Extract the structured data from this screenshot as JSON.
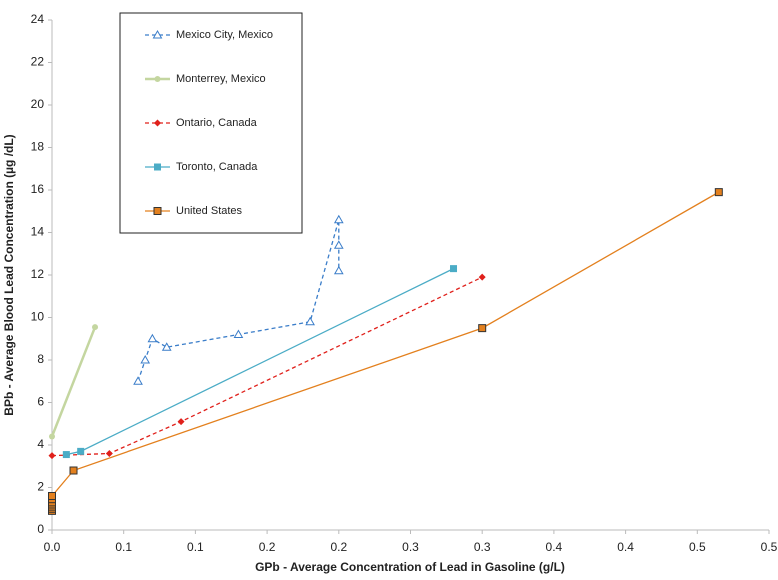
{
  "chart_data": {
    "type": "line",
    "xlabel": "GPb - Average Concentration of Lead in Gasoline (g/L)",
    "ylabel": "BPb - Average Blood Lead Concentration (µg /dL)",
    "xlim": [
      0,
      0.5
    ],
    "ylim": [
      0,
      24
    ],
    "xticks": [
      {
        "value": 0,
        "label": "0.0"
      },
      {
        "value": 0.05,
        "label": "0.1"
      },
      {
        "value": 0.1,
        "label": "0.1"
      },
      {
        "value": 0.15,
        "label": "0.2"
      },
      {
        "value": 0.2,
        "label": "0.2"
      },
      {
        "value": 0.25,
        "label": "0.3"
      },
      {
        "value": 0.3,
        "label": "0.3"
      },
      {
        "value": 0.35,
        "label": "0.4"
      },
      {
        "value": 0.4,
        "label": "0.4"
      },
      {
        "value": 0.45,
        "label": "0.5"
      },
      {
        "value": 0.5,
        "label": "0.5"
      }
    ],
    "yticks": [
      0,
      2,
      4,
      6,
      8,
      10,
      12,
      14,
      16,
      18,
      20,
      22,
      24
    ],
    "grid": false,
    "legend": "upper left",
    "series": [
      {
        "name": "Mexico City, Mexico",
        "color": "#3a7dc9",
        "dash": true,
        "marker": "triangle",
        "x": [
          0.06,
          0.065,
          0.07,
          0.08,
          0.13,
          0.18,
          0.2,
          0.2,
          0.2
        ],
        "values": [
          7.0,
          8.0,
          9.0,
          8.6,
          9.2,
          9.8,
          14.6,
          13.4,
          12.2
        ]
      },
      {
        "name": "Monterrey, Mexico",
        "color": "#c4d6a0",
        "dash": false,
        "marker": "circle",
        "x": [
          0,
          0.03
        ],
        "values": [
          4.4,
          9.55
        ]
      },
      {
        "name": "Ontario, Canada",
        "color": "#e0201b",
        "dash": true,
        "marker": "diamond",
        "x": [
          0,
          0.04,
          0.09,
          0.3
        ],
        "values": [
          3.5,
          3.6,
          5.1,
          11.9
        ]
      },
      {
        "name": "Toronto, Canada",
        "color": "#4bacc6",
        "dash": false,
        "marker": "square",
        "x": [
          0.01,
          0.02,
          0.28
        ],
        "values": [
          3.55,
          3.7,
          12.3
        ]
      },
      {
        "name": "United States",
        "color": "#e3801e",
        "dash": false,
        "marker": "square-dark",
        "x": [
          0,
          0,
          0,
          0,
          0,
          0,
          0,
          0.015,
          0.3,
          0.465
        ],
        "values": [
          0.9,
          1.0,
          1.1,
          1.2,
          1.3,
          1.45,
          1.6,
          2.8,
          9.5,
          15.9
        ]
      }
    ]
  }
}
